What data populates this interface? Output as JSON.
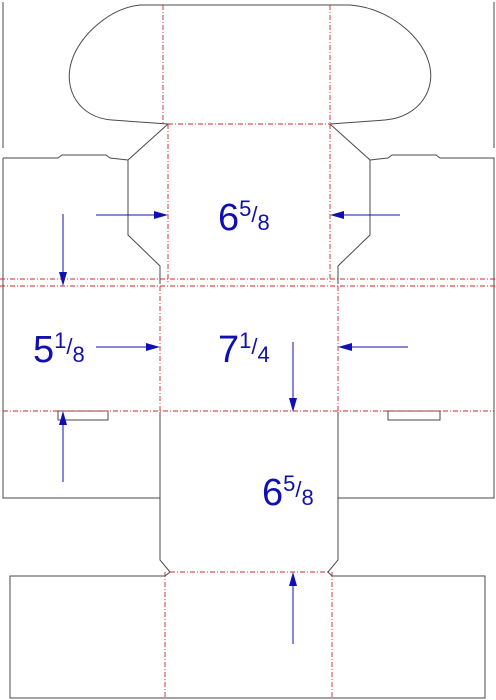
{
  "dimensions": {
    "top_panel": {
      "whole": "6",
      "num": "5",
      "slash": "/",
      "den": "8"
    },
    "middle_panel": {
      "whole": "7",
      "num": "1",
      "slash": "/",
      "den": "4"
    },
    "side_panel": {
      "whole": "5",
      "num": "1",
      "slash": "/",
      "den": "8"
    },
    "bottom_panel": {
      "whole": "6",
      "num": "5",
      "slash": "/",
      "den": "8"
    }
  },
  "colors": {
    "cut_line": "#4a4a4a",
    "fold_line": "#cc2a2a",
    "dimension": "#1010b0"
  }
}
